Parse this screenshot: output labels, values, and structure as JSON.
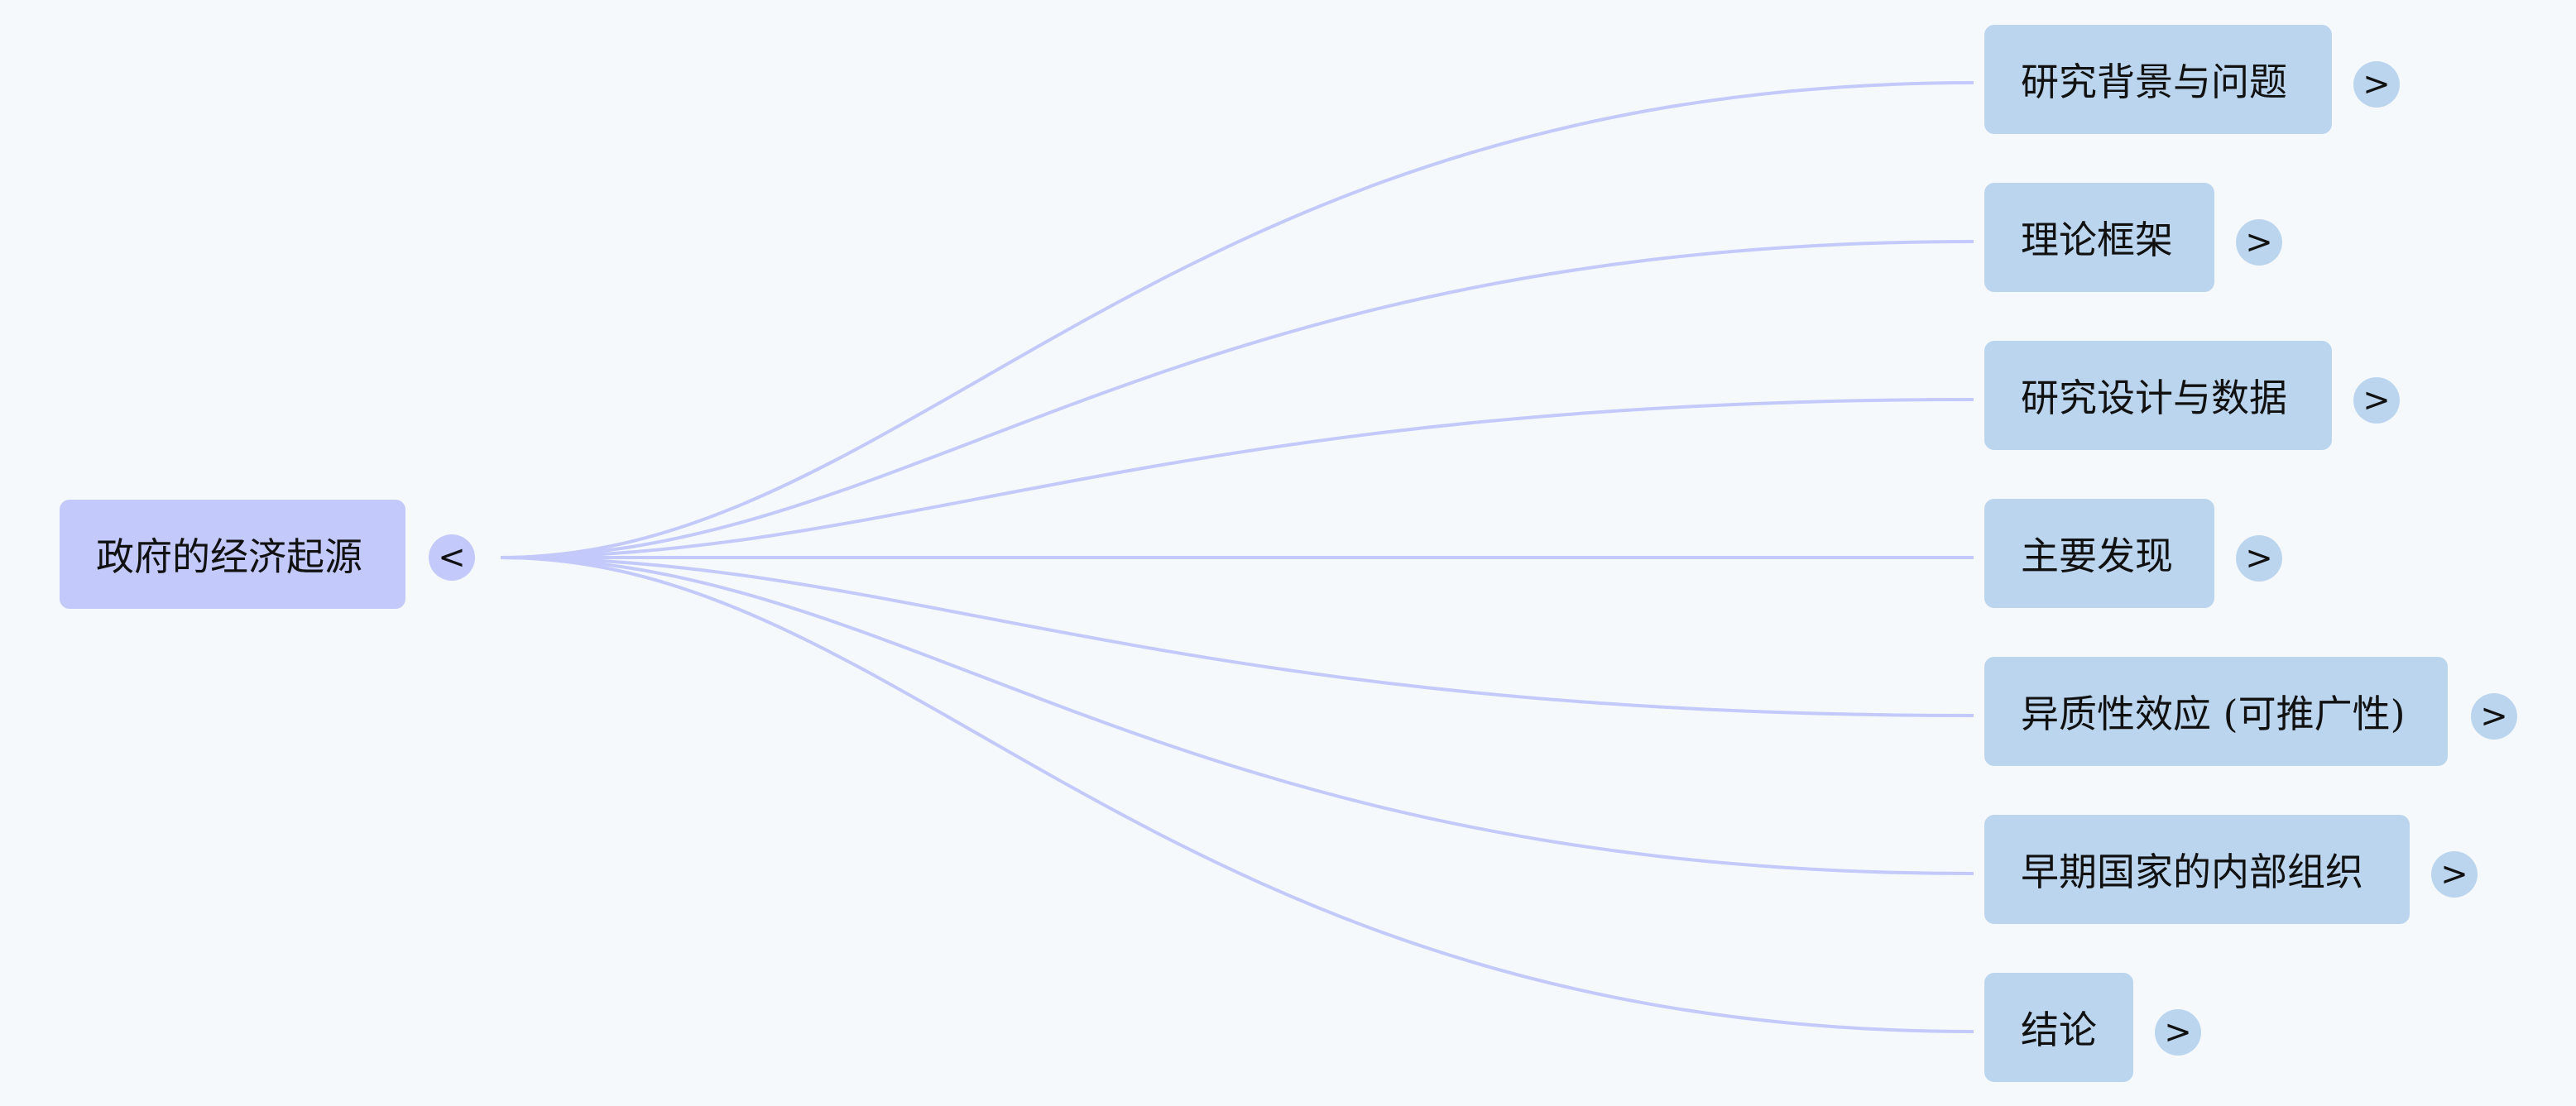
{
  "colors": {
    "background": "#f5f9fc",
    "root_fill": "#c3c9fb",
    "child_fill": "#bcd5ee",
    "link_stroke": "#c3c9fb"
  },
  "root": {
    "label": "政府的经济起源",
    "toggle": "<",
    "toggle_icon": "collapse-left-icon"
  },
  "children": [
    {
      "label": "研究背景与问题",
      "toggle": ">",
      "toggle_icon": "expand-right-icon"
    },
    {
      "label": "理论框架",
      "toggle": ">",
      "toggle_icon": "expand-right-icon"
    },
    {
      "label": "研究设计与数据",
      "toggle": ">",
      "toggle_icon": "expand-right-icon"
    },
    {
      "label": "主要发现",
      "toggle": ">",
      "toggle_icon": "expand-right-icon"
    },
    {
      "label": "异质性效应 (可推广性)",
      "toggle": ">",
      "toggle_icon": "expand-right-icon"
    },
    {
      "label": "早期国家的内部组织",
      "toggle": ">",
      "toggle_icon": "expand-right-icon"
    },
    {
      "label": "结论",
      "toggle": ">",
      "toggle_icon": "expand-right-icon"
    }
  ]
}
